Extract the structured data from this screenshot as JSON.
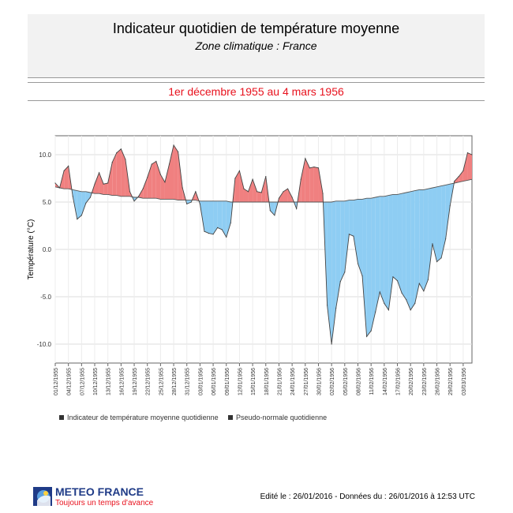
{
  "header": {
    "title": "Indicateur quotidien de température moyenne",
    "subtitle": "Zone climatique : France",
    "period": "1er décembre 1955 au 4 mars 1956"
  },
  "legend": {
    "item1": "Indicateur de température moyenne quotidienne",
    "item2": "Pseudo-normale quotidienne"
  },
  "footer": {
    "logo_main": "METEO FRANCE",
    "logo_sub": "Toujours un temps d'avance",
    "edit_info": "Edité le : 26/01/2016 - Données du : 26/01/2016 à 12:53 UTC"
  },
  "colors": {
    "above_normal": "#f08080",
    "below_normal": "#8ecdf3",
    "title_red": "#e8121e",
    "brand_blue": "#1f3b87"
  },
  "chart_data": {
    "type": "area",
    "title": "Indicateur quotidien de température moyenne",
    "ylabel": "Température (°C)",
    "xlabel": "",
    "ylim": [
      -12,
      12
    ],
    "yticks": [
      -10.0,
      -5.0,
      0.0,
      5.0,
      10.0
    ],
    "grid": true,
    "legend_position": "bottom",
    "x_tick_labels": [
      "01/12/1955",
      "04/12/1955",
      "07/12/1955",
      "10/12/1955",
      "13/12/1955",
      "16/12/1955",
      "19/12/1955",
      "22/12/1955",
      "25/12/1955",
      "28/12/1955",
      "31/12/1955",
      "03/01/1956",
      "06/01/1956",
      "09/01/1956",
      "12/01/1956",
      "15/01/1956",
      "18/01/1956",
      "21/01/1956",
      "24/01/1956",
      "27/01/1956",
      "30/01/1956",
      "02/02/1956",
      "05/02/1956",
      "08/02/1956",
      "11/02/1956",
      "14/02/1956",
      "17/02/1956",
      "20/02/1956",
      "23/02/1956",
      "26/02/1956",
      "29/02/1956",
      "03/03/1956"
    ],
    "series": [
      {
        "name": "Indicateur de température moyenne quotidienne",
        "values": [
          7.0,
          6.5,
          8.3,
          8.8,
          5.6,
          3.2,
          3.6,
          4.9,
          5.5,
          6.9,
          8.1,
          6.9,
          7.0,
          9.2,
          10.2,
          10.6,
          9.5,
          6.1,
          5.1,
          5.6,
          6.4,
          7.6,
          9.0,
          9.3,
          7.9,
          7.1,
          9.0,
          11.0,
          10.3,
          6.5,
          4.8,
          5.0,
          6.1,
          4.8,
          1.9,
          1.7,
          1.6,
          2.3,
          2.1,
          1.3,
          2.8,
          7.5,
          8.3,
          6.4,
          6.1,
          7.4,
          6.1,
          6.0,
          7.7,
          4.1,
          3.6,
          5.4,
          6.1,
          6.4,
          5.5,
          4.3,
          7.4,
          9.6,
          8.6,
          8.7,
          8.6,
          5.9,
          -5.9,
          -10.0,
          -6.2,
          -3.4,
          -2.4,
          1.6,
          1.4,
          -1.5,
          -2.8,
          -9.2,
          -8.6,
          -6.6,
          -4.5,
          -5.7,
          -6.4,
          -2.9,
          -3.3,
          -4.6,
          -5.3,
          -6.4,
          -5.7,
          -3.6,
          -4.4,
          -3.2,
          0.6,
          -1.3,
          -0.9,
          1.1,
          4.6,
          7.2,
          7.7,
          8.3,
          10.2,
          10.0
        ]
      },
      {
        "name": "Pseudo-normale quotidienne",
        "values": [
          6.6,
          6.5,
          6.4,
          6.4,
          6.3,
          6.2,
          6.1,
          6.1,
          6.0,
          5.9,
          5.9,
          5.8,
          5.8,
          5.7,
          5.7,
          5.6,
          5.6,
          5.6,
          5.5,
          5.5,
          5.4,
          5.4,
          5.4,
          5.4,
          5.3,
          5.3,
          5.3,
          5.3,
          5.2,
          5.2,
          5.2,
          5.2,
          5.2,
          5.1,
          5.1,
          5.1,
          5.1,
          5.1,
          5.1,
          5.1,
          5.0,
          5.0,
          5.0,
          5.0,
          5.0,
          5.0,
          5.0,
          5.0,
          5.0,
          5.0,
          5.0,
          5.0,
          5.0,
          5.0,
          5.0,
          5.0,
          5.0,
          5.0,
          5.0,
          5.0,
          5.0,
          5.0,
          5.0,
          5.0,
          5.1,
          5.1,
          5.1,
          5.2,
          5.2,
          5.3,
          5.3,
          5.4,
          5.4,
          5.5,
          5.6,
          5.6,
          5.7,
          5.8,
          5.8,
          5.9,
          6.0,
          6.1,
          6.2,
          6.3,
          6.3,
          6.4,
          6.5,
          6.6,
          6.7,
          6.8,
          6.9,
          7.0,
          7.1,
          7.2,
          7.3,
          7.4
        ]
      }
    ]
  }
}
